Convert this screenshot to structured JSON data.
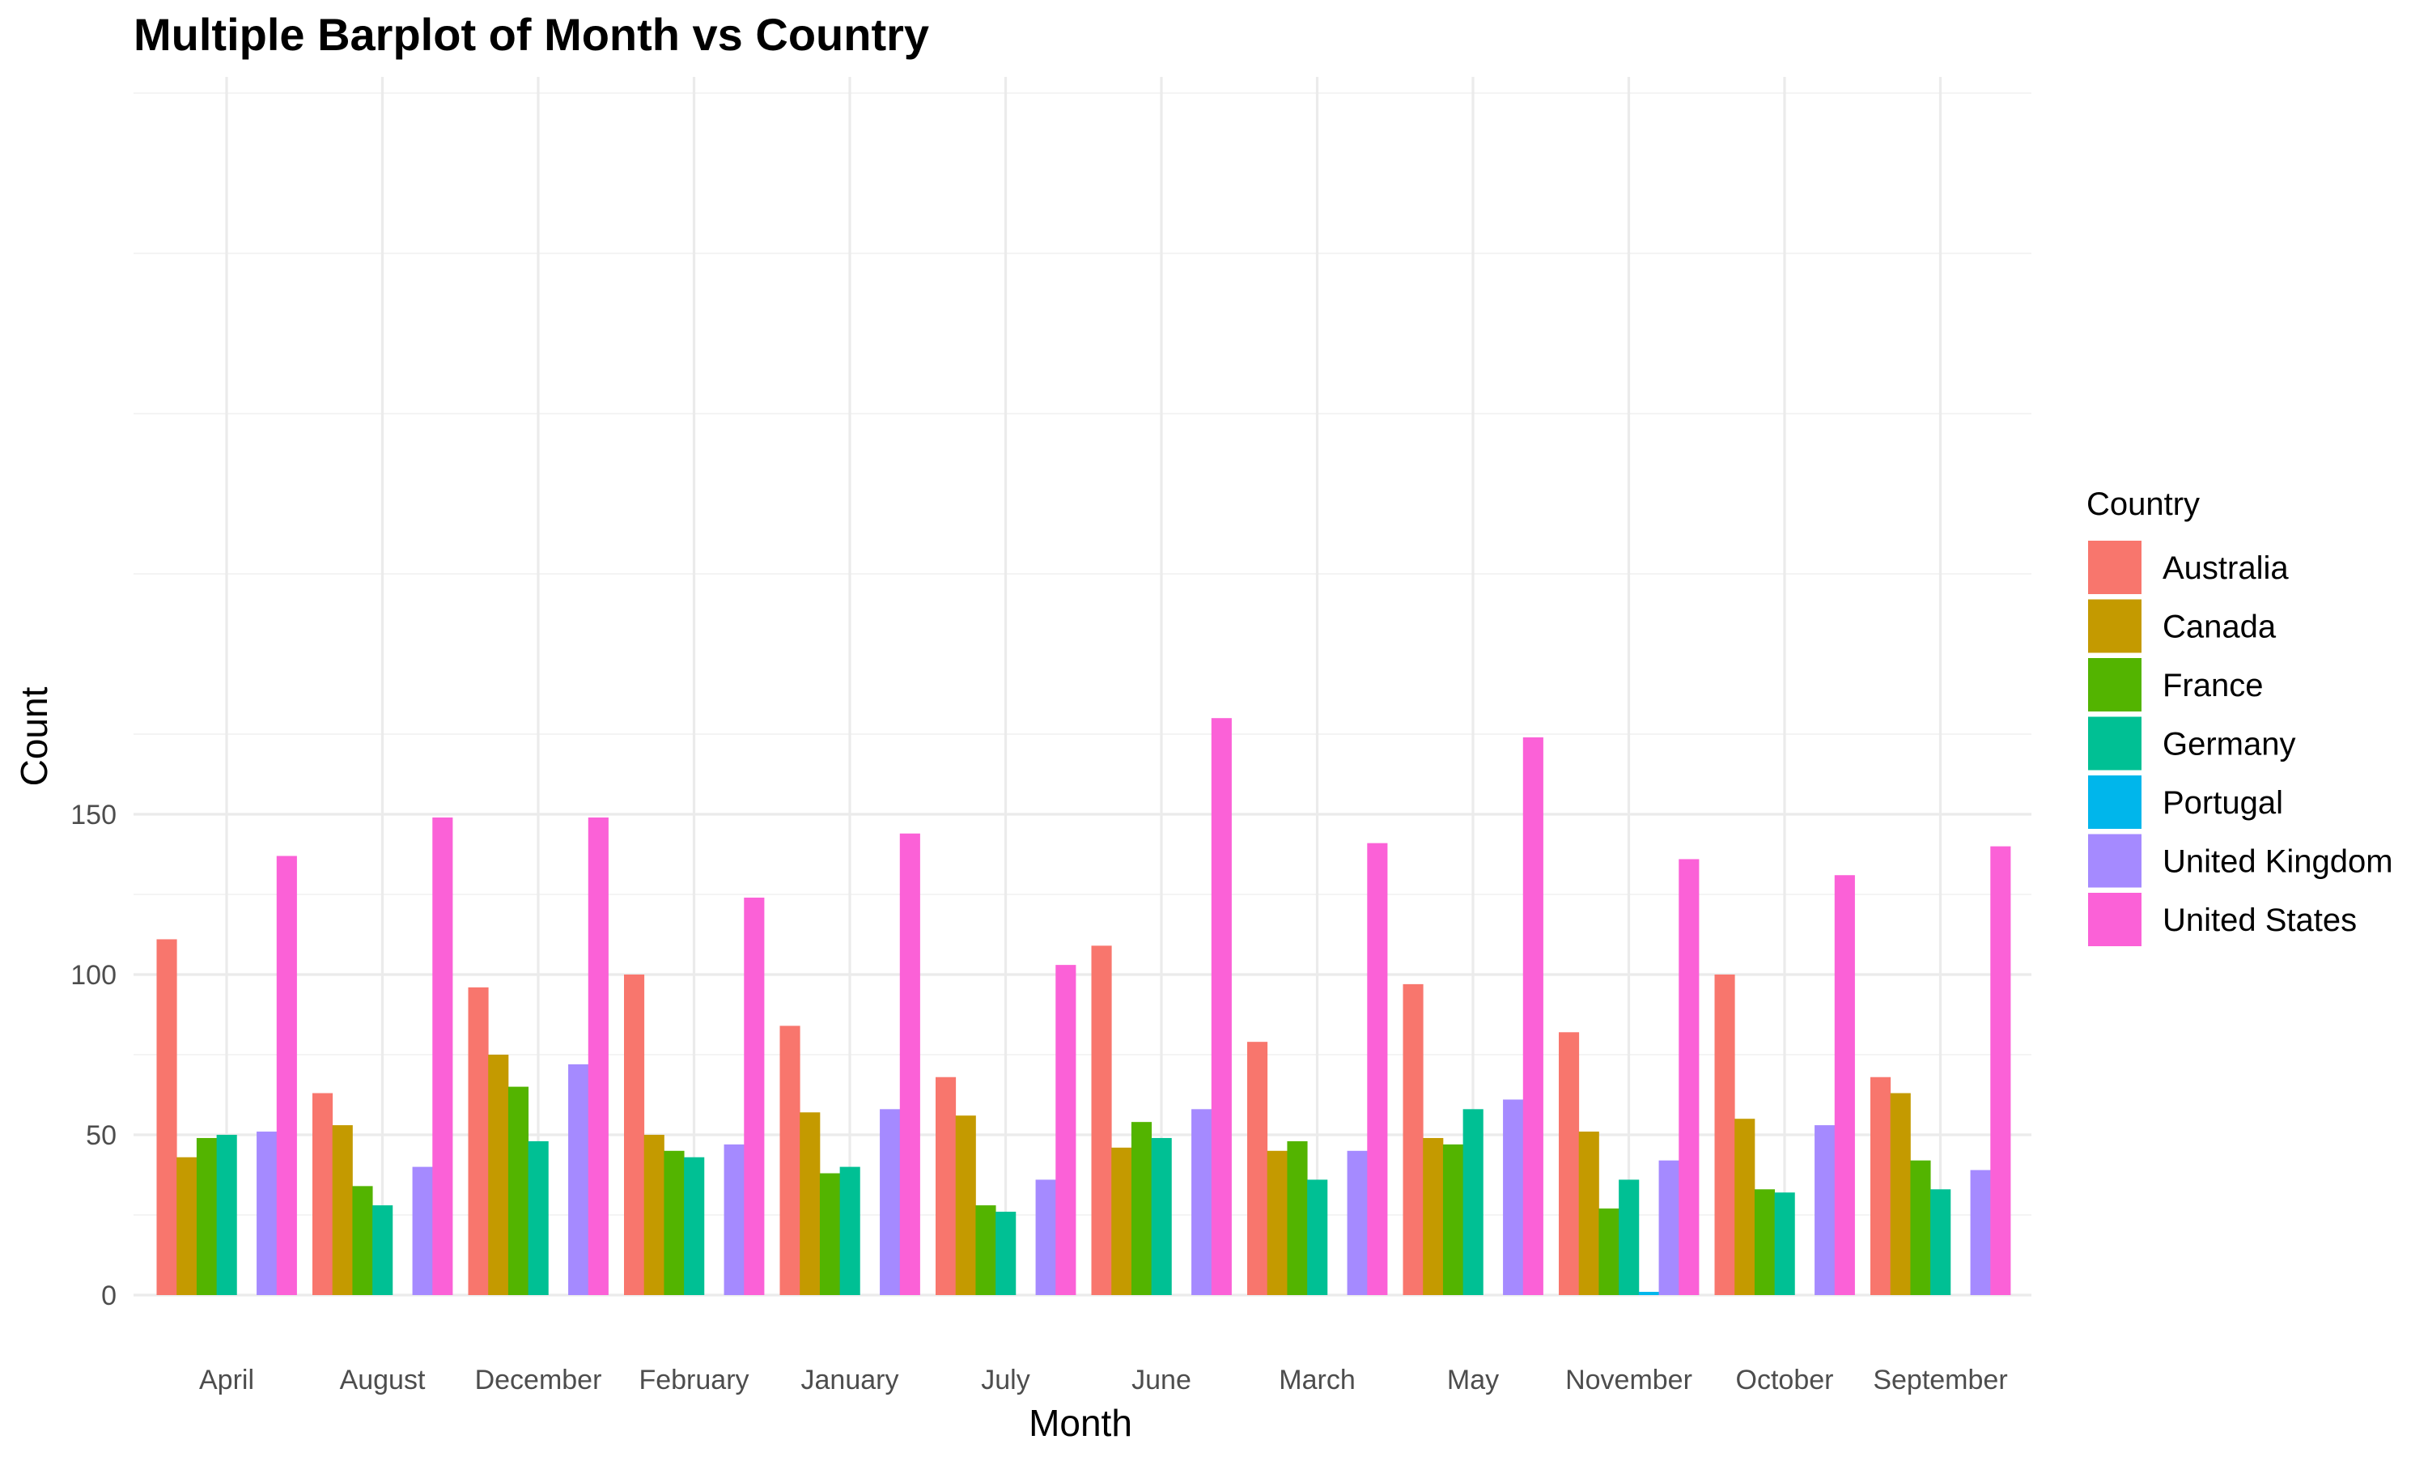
{
  "chart_data": {
    "type": "bar",
    "title": "Multiple Barplot of Month vs Country",
    "xlabel": "Month",
    "ylabel": "Count",
    "legend_title": "Country",
    "legend_position": "right",
    "grid": true,
    "ylim": [
      0,
      180
    ],
    "yticks": [
      0,
      50,
      100,
      150
    ],
    "categories": [
      "April",
      "August",
      "December",
      "February",
      "January",
      "July",
      "June",
      "March",
      "May",
      "November",
      "October",
      "September"
    ],
    "series": [
      {
        "name": "Australia",
        "color": "#F8766D",
        "values": [
          111,
          63,
          96,
          100,
          84,
          68,
          109,
          79,
          97,
          82,
          100,
          68
        ]
      },
      {
        "name": "Canada",
        "color": "#C49A00",
        "values": [
          43,
          53,
          75,
          50,
          57,
          56,
          46,
          45,
          49,
          51,
          55,
          63
        ]
      },
      {
        "name": "France",
        "color": "#53B400",
        "values": [
          49,
          34,
          65,
          45,
          38,
          28,
          54,
          48,
          47,
          27,
          33,
          42
        ]
      },
      {
        "name": "Germany",
        "color": "#00C094",
        "values": [
          50,
          28,
          48,
          43,
          40,
          26,
          49,
          36,
          58,
          36,
          32,
          33
        ]
      },
      {
        "name": "Portugal",
        "color": "#00B6EB",
        "values": [
          null,
          null,
          null,
          null,
          null,
          null,
          null,
          null,
          null,
          1,
          null,
          null
        ]
      },
      {
        "name": "United Kingdom",
        "color": "#A58AFF",
        "values": [
          51,
          40,
          72,
          47,
          58,
          36,
          58,
          45,
          61,
          42,
          53,
          39
        ]
      },
      {
        "name": "United States",
        "color": "#FB61D7",
        "values": [
          137,
          149,
          149,
          124,
          144,
          103,
          180,
          141,
          174,
          136,
          131,
          140
        ]
      }
    ]
  }
}
